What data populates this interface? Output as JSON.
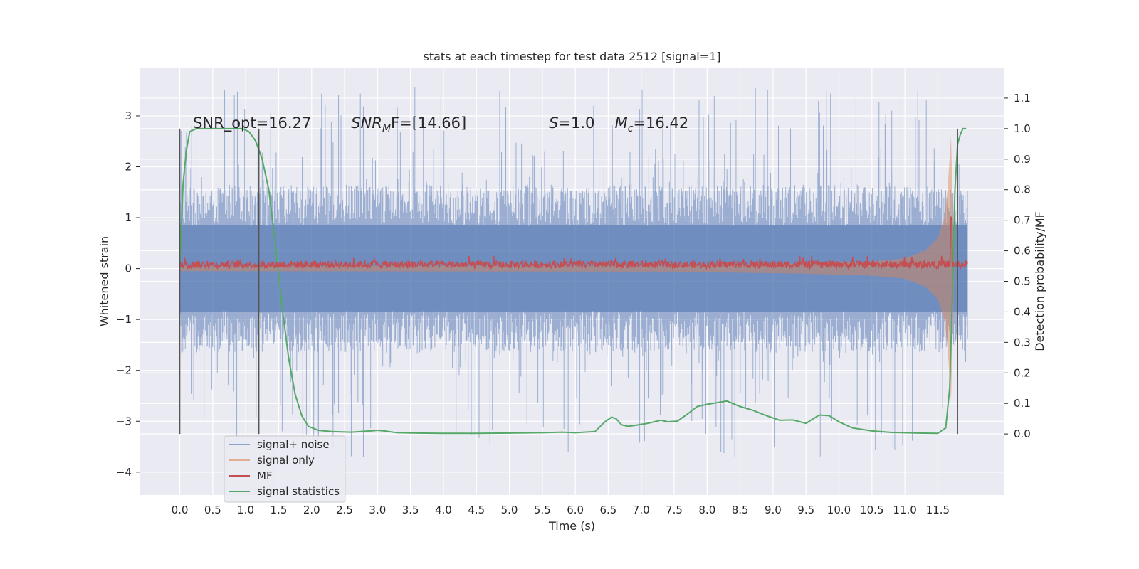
{
  "chart_data": {
    "type": "line",
    "title": "stats at each timestep for test data 2512 [signal=1]",
    "xlabel": "Time (s)",
    "ylabel": "Whitened strain",
    "y2label": "Detection probability/MF",
    "xlim": [
      -0.6,
      12.5
    ],
    "ylim": [
      -4.45,
      3.95
    ],
    "y2lim": [
      -0.2,
      1.2
    ],
    "xticks": [
      0.0,
      0.5,
      1.0,
      1.5,
      2.0,
      2.5,
      3.0,
      3.5,
      4.0,
      4.5,
      5.0,
      5.5,
      6.0,
      6.5,
      7.0,
      7.5,
      8.0,
      8.5,
      9.0,
      9.5,
      10.0,
      10.5,
      11.0,
      11.5
    ],
    "xtick_labels": [
      "0.0",
      "0.5",
      "1.0",
      "1.5",
      "2.0",
      "2.5",
      "3.0",
      "3.5",
      "4.0",
      "4.5",
      "5.0",
      "5.5",
      "6.0",
      "6.5",
      "7.0",
      "7.5",
      "8.0",
      "8.5",
      "9.0",
      "9.5",
      "10.0",
      "10.5",
      "11.0",
      "11.5"
    ],
    "yticks": [
      3,
      2,
      1,
      0,
      -1,
      -2,
      -3,
      -4
    ],
    "ytick_labels": [
      "3",
      "2",
      "1",
      "0",
      "−1",
      "−2",
      "−3",
      "−4"
    ],
    "y2ticks": [
      1.1,
      1.0,
      0.9,
      0.8,
      0.7,
      0.6,
      0.5,
      0.4,
      0.3,
      0.2,
      0.1,
      0.0
    ],
    "y2tick_labels": [
      "1.1",
      "1.0",
      "0.9",
      "0.8",
      "0.7",
      "0.6",
      "0.5",
      "0.4",
      "0.3",
      "0.2",
      "0.1",
      "0.0"
    ],
    "grid": true,
    "legend_position": "lower-left",
    "annotations": [
      {
        "text": "SNR_opt=16.27",
        "x": 0.2
      },
      {
        "main": "SNR",
        "sub": "M",
        "rest": "F=[14.66]",
        "x": 2.6
      },
      {
        "main": "S",
        "rest": "=1.0",
        "x": 5.6
      },
      {
        "main": "M",
        "sub": "c",
        "rest": "=16.42",
        "x": 6.6
      }
    ],
    "vlines": [
      {
        "x": 0.0,
        "ymin": -3.25,
        "ymax": 2.75
      },
      {
        "x": 1.2,
        "ymin": -3.25,
        "ymax": 2.75
      },
      {
        "x": 11.8,
        "ymin": -3.25,
        "ymax": 2.75
      }
    ],
    "series": [
      {
        "name": "signal+ noise",
        "color": "#4c72b0",
        "axis": "left",
        "style": "noise-band",
        "x_range": [
          0.0,
          11.95
        ],
        "core_range": [
          -0.85,
          0.85
        ],
        "typical_range": [
          -1.5,
          1.5
        ],
        "peak_range": [
          -3.7,
          3.6
        ]
      },
      {
        "name": "signal only",
        "color": "#dd8452",
        "axis": "left",
        "style": "chirp",
        "x": [
          0.0,
          7.5,
          8.5,
          9.5,
          10.5,
          11.0,
          11.3,
          11.5,
          11.6,
          11.65,
          11.7,
          11.75
        ],
        "amplitude": [
          0.05,
          0.06,
          0.08,
          0.1,
          0.14,
          0.2,
          0.35,
          0.6,
          1.0,
          1.6,
          2.6,
          0.1
        ]
      },
      {
        "name": "MF",
        "color": "#c44e52",
        "axis": "right",
        "style": "noisy-flat",
        "x_range": [
          0.0,
          11.95
        ],
        "level": 0.555,
        "jitter": 0.012,
        "spike_x": 11.7,
        "spike_value": 0.71
      },
      {
        "name": "signal statistics",
        "color": "#55a868",
        "axis": "right",
        "x": [
          0.0,
          0.05,
          0.1,
          0.15,
          0.25,
          0.4,
          0.6,
          0.8,
          0.95,
          1.05,
          1.15,
          1.25,
          1.35,
          1.45,
          1.55,
          1.65,
          1.75,
          1.85,
          1.95,
          2.1,
          2.3,
          2.6,
          2.9,
          3.0,
          3.1,
          3.3,
          3.6,
          4.0,
          4.5,
          5.0,
          5.5,
          5.8,
          6.0,
          6.3,
          6.45,
          6.55,
          6.62,
          6.7,
          6.8,
          6.9,
          7.1,
          7.3,
          7.4,
          7.55,
          7.7,
          7.85,
          8.0,
          8.3,
          8.5,
          8.7,
          8.9,
          9.1,
          9.3,
          9.5,
          9.7,
          9.85,
          10.0,
          10.2,
          10.5,
          10.8,
          11.2,
          11.5,
          11.62,
          11.68,
          11.72,
          11.76,
          11.8,
          11.84,
          11.88,
          11.93
        ],
        "y": [
          0.55,
          0.82,
          0.93,
          0.99,
          1.0,
          1.0,
          1.0,
          1.0,
          1.0,
          0.99,
          0.96,
          0.9,
          0.8,
          0.62,
          0.42,
          0.25,
          0.13,
          0.06,
          0.025,
          0.012,
          0.008,
          0.006,
          0.01,
          0.012,
          0.01,
          0.004,
          0.003,
          0.002,
          0.002,
          0.003,
          0.004,
          0.006,
          0.004,
          0.008,
          0.04,
          0.055,
          0.05,
          0.03,
          0.025,
          0.028,
          0.035,
          0.045,
          0.04,
          0.042,
          0.065,
          0.09,
          0.097,
          0.108,
          0.09,
          0.077,
          0.06,
          0.045,
          0.046,
          0.035,
          0.062,
          0.06,
          0.04,
          0.02,
          0.01,
          0.005,
          0.003,
          0.002,
          0.02,
          0.15,
          0.45,
          0.8,
          0.95,
          0.98,
          1.0,
          1.0
        ]
      }
    ]
  }
}
